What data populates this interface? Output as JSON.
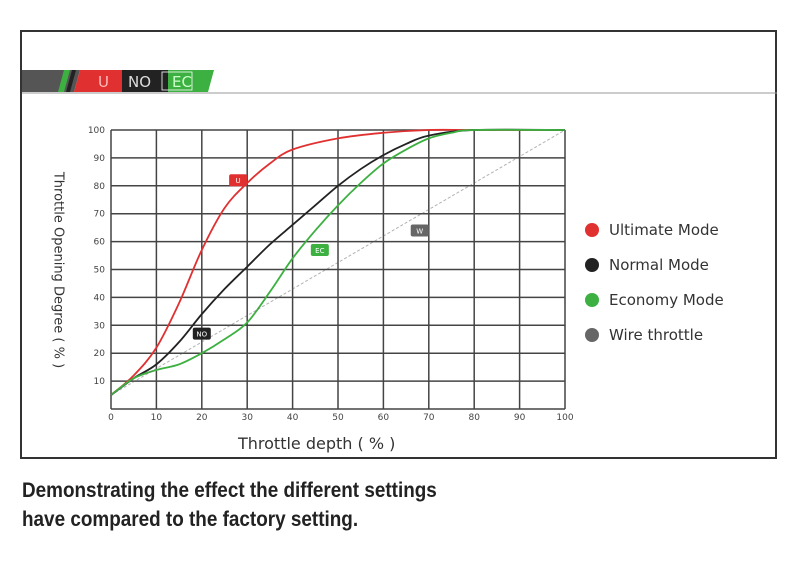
{
  "header_badges": [
    "U",
    "NO",
    "EC"
  ],
  "caption": [
    "Demonstrating the effect the different settings",
    "have compared to the factory setting."
  ],
  "chart_data": {
    "type": "line",
    "title": "",
    "xlabel": "Throttle depth ( % )",
    "ylabel": "Throttle Opening Degree ( % )",
    "xlim": [
      0,
      100
    ],
    "ylim": [
      0,
      100
    ],
    "xticks": [
      0,
      10,
      20,
      30,
      40,
      50,
      60,
      70,
      80,
      90,
      100
    ],
    "yticks": [
      10,
      20,
      30,
      40,
      50,
      60,
      70,
      80,
      90,
      100
    ],
    "grid": true,
    "legend_placement": "right",
    "series": [
      {
        "name": "Ultimate Mode",
        "badge": "U",
        "color": "#e03030",
        "badge_at": [
          28,
          82
        ],
        "x": [
          0,
          5,
          10,
          15,
          20,
          25,
          30,
          35,
          40,
          50,
          60,
          70,
          80,
          100
        ],
        "y": [
          5,
          12,
          22,
          38,
          57,
          72,
          81,
          88,
          93,
          97,
          99,
          100,
          100,
          100
        ]
      },
      {
        "name": "Normal Mode",
        "badge": "NO",
        "color": "#222222",
        "badge_at": [
          20,
          27
        ],
        "x": [
          0,
          5,
          10,
          15,
          20,
          25,
          30,
          35,
          40,
          45,
          50,
          55,
          60,
          65,
          70,
          80,
          100
        ],
        "y": [
          5,
          11,
          16,
          24,
          34,
          43,
          51,
          59,
          66,
          73,
          80,
          86,
          91,
          95,
          98,
          100,
          100
        ]
      },
      {
        "name": "Economy Mode",
        "badge": "EC",
        "color": "#3cb040",
        "badge_at": [
          46,
          57
        ],
        "x": [
          0,
          5,
          10,
          15,
          20,
          25,
          30,
          35,
          40,
          45,
          50,
          55,
          60,
          65,
          70,
          75,
          80,
          100
        ],
        "y": [
          5,
          11,
          14,
          16,
          20,
          25,
          31,
          42,
          54,
          64,
          73,
          81,
          88,
          93,
          97,
          99,
          100,
          100
        ]
      },
      {
        "name": "Wire throttle",
        "badge": "W",
        "color": "#666666",
        "badge_at": [
          68,
          64
        ],
        "dashed": true,
        "x": [
          0,
          100
        ],
        "y": [
          5,
          100
        ]
      }
    ]
  }
}
